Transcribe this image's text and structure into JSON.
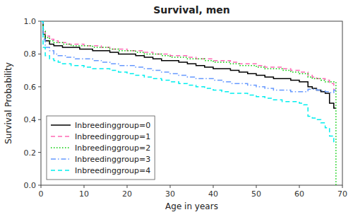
{
  "chart_data": {
    "type": "step",
    "title": "Survival, men",
    "x_label": "Age in years",
    "y_label": "Survival Probability",
    "xlim": [
      0,
      70
    ],
    "ylim": [
      0,
      1.0
    ],
    "xticks": [
      0,
      10,
      20,
      30,
      40,
      50,
      60,
      70
    ],
    "yticks": [
      {
        "value": 0.0,
        "label": "0.0"
      },
      0.2,
      0.4,
      0.6,
      0.8,
      {
        "value": 1.0,
        "label": "1.0"
      }
    ],
    "grid": false,
    "legend": "lower left",
    "series": [
      {
        "name": "Inbreedinggroup=0",
        "color": "#000000",
        "line_style": "solid",
        "x": [
          0,
          0.5,
          1,
          2,
          3,
          4,
          5,
          6,
          7,
          8,
          9,
          10,
          12,
          14,
          16,
          18,
          20,
          22,
          24,
          26,
          28,
          30,
          32,
          34,
          36,
          38,
          40,
          42,
          44,
          46,
          48,
          50,
          52,
          54,
          56,
          58,
          60,
          62,
          63,
          64,
          65,
          66,
          67,
          68,
          68.5
        ],
        "values": [
          1.0,
          0.92,
          0.88,
          0.86,
          0.85,
          0.85,
          0.84,
          0.84,
          0.84,
          0.84,
          0.83,
          0.83,
          0.82,
          0.82,
          0.81,
          0.8,
          0.8,
          0.79,
          0.78,
          0.77,
          0.76,
          0.76,
          0.75,
          0.74,
          0.73,
          0.72,
          0.71,
          0.71,
          0.7,
          0.69,
          0.68,
          0.67,
          0.66,
          0.65,
          0.65,
          0.64,
          0.63,
          0.6,
          0.59,
          0.58,
          0.57,
          0.56,
          0.5,
          0.47,
          0.47
        ]
      },
      {
        "name": "Inbreedinggroup=1",
        "color": "#FF69B4",
        "line_style": "dashed",
        "x": [
          0,
          0.5,
          1,
          2,
          3,
          4,
          5,
          6,
          7,
          8,
          9,
          10,
          12,
          14,
          16,
          18,
          20,
          22,
          24,
          26,
          28,
          30,
          32,
          34,
          36,
          38,
          40,
          42,
          44,
          46,
          48,
          50,
          52,
          54,
          56,
          58,
          60,
          62,
          63,
          64,
          65,
          66,
          67,
          68,
          68.5
        ],
        "values": [
          1.0,
          0.95,
          0.91,
          0.89,
          0.88,
          0.87,
          0.87,
          0.86,
          0.86,
          0.86,
          0.86,
          0.85,
          0.85,
          0.84,
          0.83,
          0.83,
          0.82,
          0.82,
          0.81,
          0.8,
          0.8,
          0.79,
          0.79,
          0.78,
          0.77,
          0.77,
          0.76,
          0.76,
          0.75,
          0.74,
          0.74,
          0.73,
          0.72,
          0.72,
          0.71,
          0.7,
          0.69,
          0.67,
          0.66,
          0.65,
          0.65,
          0.64,
          0.62,
          0.58,
          0.58
        ]
      },
      {
        "name": "Inbreedinggroup=2",
        "color": "#00CC00",
        "line_style": "dotted",
        "x": [
          0,
          0.5,
          1,
          2,
          3,
          4,
          5,
          6,
          7,
          8,
          9,
          10,
          12,
          14,
          16,
          18,
          20,
          22,
          24,
          26,
          28,
          30,
          32,
          34,
          36,
          38,
          40,
          42,
          44,
          46,
          48,
          50,
          52,
          54,
          56,
          58,
          60,
          62,
          63,
          64,
          65,
          66,
          67,
          68,
          68.5,
          68.5
        ],
        "values": [
          1.0,
          0.94,
          0.9,
          0.88,
          0.87,
          0.87,
          0.86,
          0.86,
          0.85,
          0.85,
          0.85,
          0.85,
          0.84,
          0.84,
          0.83,
          0.82,
          0.82,
          0.81,
          0.8,
          0.8,
          0.79,
          0.78,
          0.78,
          0.77,
          0.77,
          0.76,
          0.75,
          0.75,
          0.74,
          0.73,
          0.73,
          0.72,
          0.71,
          0.71,
          0.7,
          0.69,
          0.68,
          0.66,
          0.65,
          0.65,
          0.64,
          0.63,
          0.63,
          0.63,
          0.63,
          0.0
        ]
      },
      {
        "name": "Inbreedinggroup=3",
        "color": "#6699FF",
        "line_style": "dashdot",
        "x": [
          0,
          0.5,
          1,
          2,
          3,
          4,
          5,
          6,
          7,
          8,
          9,
          10,
          12,
          14,
          16,
          18,
          20,
          22,
          24,
          26,
          28,
          30,
          32,
          34,
          36,
          38,
          40,
          42,
          44,
          46,
          48,
          50,
          52,
          54,
          56,
          58,
          60,
          62,
          63,
          64,
          65,
          66,
          67,
          68,
          68.5
        ],
        "values": [
          1.0,
          0.89,
          0.84,
          0.82,
          0.8,
          0.79,
          0.79,
          0.78,
          0.78,
          0.77,
          0.77,
          0.77,
          0.76,
          0.75,
          0.74,
          0.73,
          0.73,
          0.72,
          0.71,
          0.7,
          0.69,
          0.68,
          0.67,
          0.66,
          0.65,
          0.65,
          0.64,
          0.63,
          0.62,
          0.62,
          0.61,
          0.6,
          0.59,
          0.58,
          0.58,
          0.57,
          0.57,
          0.585,
          0.585,
          0.58,
          0.575,
          0.57,
          0.565,
          0.58,
          0.58
        ]
      },
      {
        "name": "Inbreedinggroup=4",
        "color": "#00EEEE",
        "line_style": "dashed",
        "x": [
          0,
          0.5,
          1,
          2,
          3,
          4,
          5,
          6,
          7,
          8,
          9,
          10,
          12,
          14,
          16,
          18,
          20,
          22,
          24,
          26,
          28,
          30,
          32,
          34,
          36,
          38,
          40,
          42,
          44,
          46,
          48,
          50,
          52,
          54,
          56,
          58,
          60,
          61,
          62,
          63,
          64,
          65,
          66,
          67,
          68,
          68.5
        ],
        "values": [
          1.0,
          0.84,
          0.79,
          0.77,
          0.76,
          0.75,
          0.74,
          0.74,
          0.73,
          0.73,
          0.73,
          0.72,
          0.71,
          0.71,
          0.7,
          0.69,
          0.68,
          0.67,
          0.66,
          0.65,
          0.64,
          0.63,
          0.62,
          0.61,
          0.6,
          0.59,
          0.58,
          0.57,
          0.56,
          0.56,
          0.55,
          0.54,
          0.53,
          0.52,
          0.51,
          0.51,
          0.5,
          0.49,
          0.42,
          0.41,
          0.4,
          0.38,
          0.35,
          0.3,
          0.26,
          0.26
        ]
      }
    ]
  }
}
